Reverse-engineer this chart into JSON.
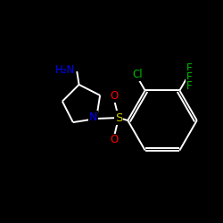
{
  "bg_color": "#000000",
  "bond_color": "#ffffff",
  "atom_colors": {
    "N": "#0000ff",
    "S": "#cccc00",
    "O": "#ff0000",
    "Cl": "#00bb00",
    "F": "#00bb00",
    "H2N": "#0000ff"
  },
  "figsize": [
    2.5,
    2.5
  ],
  "dpi": 100
}
